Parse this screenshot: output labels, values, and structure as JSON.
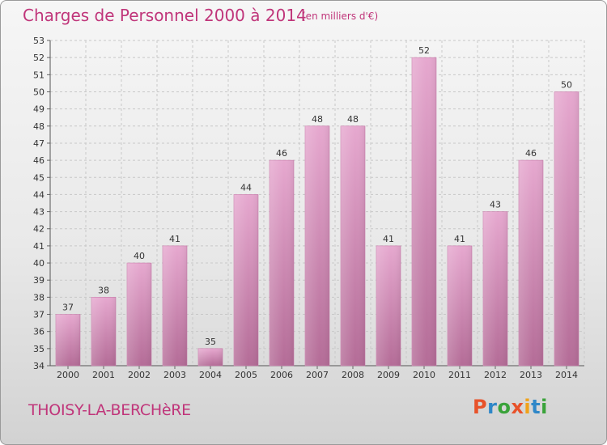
{
  "header": {
    "title": "Charges de Personnel 2000 à 2014",
    "subtitle": "(en milliers d'€)"
  },
  "footer": {
    "commune": "THOISY-LA-BERCHèRE",
    "brand": "Proxiti"
  },
  "colors": {
    "accent": "#c0357a",
    "bar_top": "#e6a8cf",
    "bar_bottom": "#b46c97",
    "brand_letters": [
      "#e8522a",
      "#2e87c8",
      "#3aa33a",
      "#e8522a",
      "#f0a21a",
      "#2e87c8",
      "#3aa33a"
    ]
  },
  "chart_data": {
    "type": "bar",
    "title": "Charges de Personnel 2000 à 2014",
    "categories": [
      "2000",
      "2001",
      "2002",
      "2003",
      "2004",
      "2005",
      "2006",
      "2007",
      "2008",
      "2009",
      "2010",
      "2011",
      "2012",
      "2013",
      "2014"
    ],
    "values": [
      37,
      38,
      40,
      41,
      35,
      44,
      46,
      48,
      48,
      41,
      52,
      41,
      43,
      46,
      50
    ],
    "ylim": [
      34,
      53
    ],
    "yticks": [
      34,
      35,
      36,
      37,
      38,
      39,
      40,
      41,
      42,
      43,
      44,
      45,
      46,
      47,
      48,
      49,
      50,
      51,
      52,
      53
    ],
    "grid": true,
    "data_labels": true
  }
}
